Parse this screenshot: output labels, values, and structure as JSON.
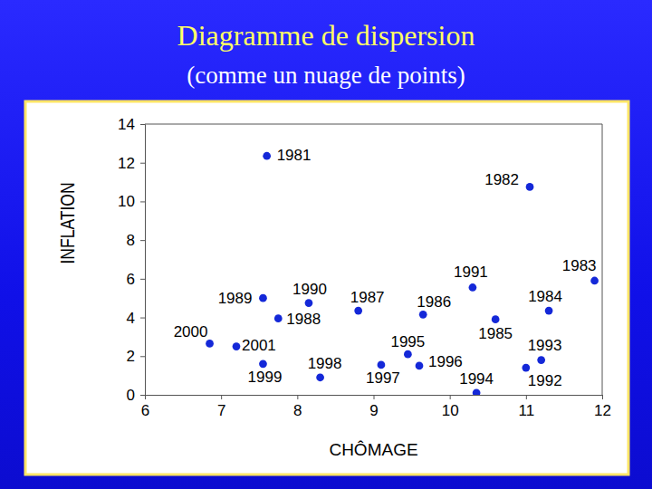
{
  "chart_data": {
    "type": "scatter",
    "title": "Diagramme de dispersion",
    "subtitle": "(comme un nuage de points)",
    "x_label": "CHÔMAGE",
    "y_label": "INFLATION",
    "labels": [
      "1981",
      "1982",
      "1983",
      "1984",
      "1985",
      "1986",
      "1987",
      "1988",
      "1989",
      "1990",
      "1991",
      "1992",
      "1993",
      "1994",
      "1995",
      "1996",
      "1997",
      "1998",
      "1999",
      "2000",
      "2001"
    ],
    "x": [
      7.6,
      11.05,
      11.9,
      11.3,
      10.6,
      9.65,
      8.8,
      7.75,
      7.55,
      8.15,
      10.3,
      11.0,
      11.2,
      10.35,
      9.45,
      9.6,
      9.1,
      8.3,
      7.55,
      6.85,
      7.2
    ],
    "values": [
      12.35,
      10.75,
      5.9,
      4.35,
      3.9,
      4.15,
      4.35,
      3.95,
      5.0,
      4.75,
      5.55,
      1.4,
      1.8,
      0.1,
      2.1,
      1.5,
      1.55,
      0.9,
      1.6,
      2.65,
      2.5
    ],
    "xlim": [
      6,
      12
    ],
    "xticks": [
      6,
      7,
      8,
      9,
      10,
      11,
      12
    ],
    "ylim": [
      0,
      14
    ],
    "yticks": [
      0,
      2,
      4,
      6,
      8,
      10,
      12,
      14
    ],
    "color": "#1428d8",
    "marker": "circle",
    "grid": false
  }
}
